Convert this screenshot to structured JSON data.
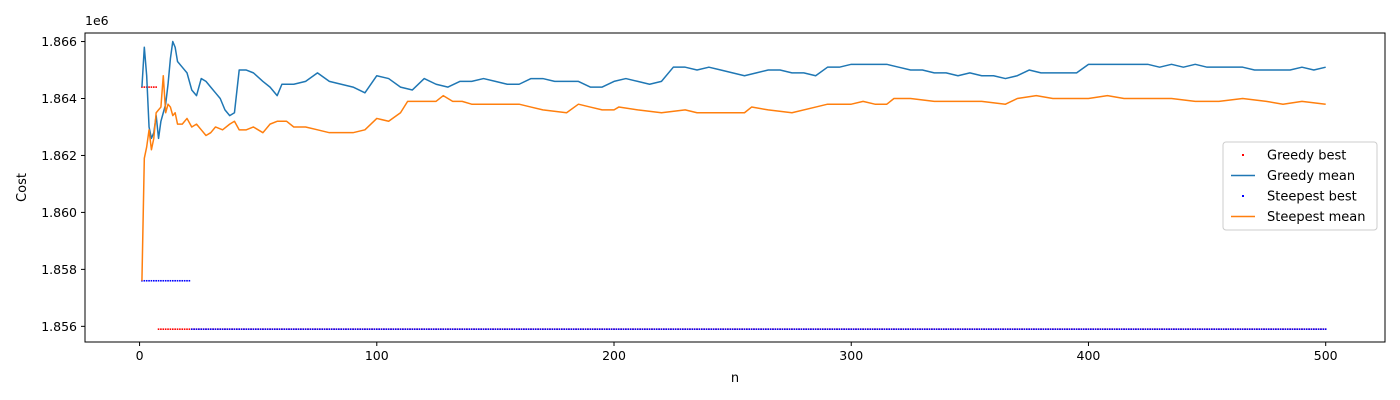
{
  "chart_data": {
    "type": "line",
    "title": "",
    "xlabel": "n",
    "ylabel": "Cost",
    "y_offset_label": "1e6",
    "xlim": [
      -23,
      525
    ],
    "ylim": [
      1855.45,
      1866.3
    ],
    "y_scale": 1000,
    "x_ticks": [
      0,
      100,
      200,
      300,
      400,
      500
    ],
    "x_tick_labels": [
      "0",
      "100",
      "200",
      "300",
      "400",
      "500"
    ],
    "y_ticks": [
      1856,
      1858,
      1860,
      1862,
      1864,
      1866
    ],
    "y_tick_labels": [
      "1.856",
      "1.858",
      "1.860",
      "1.862",
      "1.864",
      "1.866"
    ],
    "grid": false,
    "legend_position": "center-right",
    "series": [
      {
        "name": "Greedy best",
        "style": "points",
        "color": "#ff0000",
        "segments": [
          {
            "x_from": 1,
            "x_to": 7,
            "y": 1864.4
          },
          {
            "x_from": 8,
            "x_to": 500,
            "y": 1855.9
          }
        ]
      },
      {
        "name": "Greedy mean",
        "style": "line",
        "color": "#1f77b4",
        "points": [
          [
            1,
            1864.4
          ],
          [
            2,
            1865.8
          ],
          [
            3,
            1864.8
          ],
          [
            4,
            1863.0
          ],
          [
            5,
            1862.6
          ],
          [
            6,
            1862.8
          ],
          [
            7,
            1863.4
          ],
          [
            8,
            1862.6
          ],
          [
            9,
            1863.2
          ],
          [
            10,
            1863.5
          ],
          [
            11,
            1863.8
          ],
          [
            12,
            1864.5
          ],
          [
            13,
            1865.4
          ],
          [
            14,
            1866.0
          ],
          [
            15,
            1865.8
          ],
          [
            16,
            1865.3
          ],
          [
            18,
            1865.1
          ],
          [
            20,
            1864.9
          ],
          [
            22,
            1864.3
          ],
          [
            24,
            1864.1
          ],
          [
            26,
            1864.7
          ],
          [
            28,
            1864.6
          ],
          [
            30,
            1864.4
          ],
          [
            32,
            1864.2
          ],
          [
            34,
            1864.0
          ],
          [
            36,
            1863.6
          ],
          [
            38,
            1863.4
          ],
          [
            40,
            1863.5
          ],
          [
            42,
            1865.0
          ],
          [
            45,
            1865.0
          ],
          [
            48,
            1864.9
          ],
          [
            52,
            1864.6
          ],
          [
            55,
            1864.4
          ],
          [
            58,
            1864.1
          ],
          [
            60,
            1864.5
          ],
          [
            65,
            1864.5
          ],
          [
            70,
            1864.6
          ],
          [
            75,
            1864.9
          ],
          [
            80,
            1864.6
          ],
          [
            85,
            1864.5
          ],
          [
            90,
            1864.4
          ],
          [
            95,
            1864.2
          ],
          [
            100,
            1864.8
          ],
          [
            105,
            1864.7
          ],
          [
            110,
            1864.4
          ],
          [
            115,
            1864.3
          ],
          [
            120,
            1864.7
          ],
          [
            125,
            1864.5
          ],
          [
            130,
            1864.4
          ],
          [
            135,
            1864.6
          ],
          [
            140,
            1864.6
          ],
          [
            145,
            1864.7
          ],
          [
            150,
            1864.6
          ],
          [
            155,
            1864.5
          ],
          [
            160,
            1864.5
          ],
          [
            165,
            1864.7
          ],
          [
            170,
            1864.7
          ],
          [
            175,
            1864.6
          ],
          [
            180,
            1864.6
          ],
          [
            185,
            1864.6
          ],
          [
            190,
            1864.4
          ],
          [
            195,
            1864.4
          ],
          [
            200,
            1864.6
          ],
          [
            205,
            1864.7
          ],
          [
            210,
            1864.6
          ],
          [
            215,
            1864.5
          ],
          [
            220,
            1864.6
          ],
          [
            225,
            1865.1
          ],
          [
            230,
            1865.1
          ],
          [
            235,
            1865.0
          ],
          [
            240,
            1865.1
          ],
          [
            245,
            1865.0
          ],
          [
            250,
            1864.9
          ],
          [
            255,
            1864.8
          ],
          [
            260,
            1864.9
          ],
          [
            265,
            1865.0
          ],
          [
            270,
            1865.0
          ],
          [
            275,
            1864.9
          ],
          [
            280,
            1864.9
          ],
          [
            285,
            1864.8
          ],
          [
            290,
            1865.1
          ],
          [
            295,
            1865.1
          ],
          [
            300,
            1865.2
          ],
          [
            305,
            1865.2
          ],
          [
            310,
            1865.2
          ],
          [
            315,
            1865.2
          ],
          [
            320,
            1865.1
          ],
          [
            325,
            1865.0
          ],
          [
            330,
            1865.0
          ],
          [
            335,
            1864.9
          ],
          [
            340,
            1864.9
          ],
          [
            345,
            1864.8
          ],
          [
            350,
            1864.9
          ],
          [
            355,
            1864.8
          ],
          [
            360,
            1864.8
          ],
          [
            365,
            1864.7
          ],
          [
            370,
            1864.8
          ],
          [
            375,
            1865.0
          ],
          [
            380,
            1864.9
          ],
          [
            385,
            1864.9
          ],
          [
            390,
            1864.9
          ],
          [
            395,
            1864.9
          ],
          [
            400,
            1865.2
          ],
          [
            405,
            1865.2
          ],
          [
            410,
            1865.2
          ],
          [
            415,
            1865.2
          ],
          [
            420,
            1865.2
          ],
          [
            425,
            1865.2
          ],
          [
            430,
            1865.1
          ],
          [
            435,
            1865.2
          ],
          [
            440,
            1865.1
          ],
          [
            445,
            1865.2
          ],
          [
            450,
            1865.1
          ],
          [
            455,
            1865.1
          ],
          [
            460,
            1865.1
          ],
          [
            465,
            1865.1
          ],
          [
            470,
            1865.0
          ],
          [
            475,
            1865.0
          ],
          [
            480,
            1865.0
          ],
          [
            485,
            1865.0
          ],
          [
            490,
            1865.1
          ],
          [
            495,
            1865.0
          ],
          [
            500,
            1865.1
          ]
        ]
      },
      {
        "name": "Steepest best",
        "style": "points",
        "color": "#0000ff",
        "segments": [
          {
            "x_from": 1,
            "x_to": 21,
            "y": 1857.6
          },
          {
            "x_from": 22,
            "x_to": 500,
            "y": 1855.9
          }
        ]
      },
      {
        "name": "Steepest mean",
        "style": "line",
        "color": "#ff7f0e",
        "points": [
          [
            1,
            1857.6
          ],
          [
            2,
            1861.9
          ],
          [
            3,
            1862.3
          ],
          [
            4,
            1862.9
          ],
          [
            5,
            1862.2
          ],
          [
            6,
            1862.6
          ],
          [
            7,
            1863.5
          ],
          [
            8,
            1863.6
          ],
          [
            9,
            1863.7
          ],
          [
            10,
            1864.8
          ],
          [
            11,
            1863.5
          ],
          [
            12,
            1863.8
          ],
          [
            13,
            1863.7
          ],
          [
            14,
            1863.4
          ],
          [
            15,
            1863.5
          ],
          [
            16,
            1863.1
          ],
          [
            18,
            1863.1
          ],
          [
            20,
            1863.3
          ],
          [
            22,
            1863.0
          ],
          [
            24,
            1863.1
          ],
          [
            26,
            1862.9
          ],
          [
            28,
            1862.7
          ],
          [
            30,
            1862.8
          ],
          [
            32,
            1863.0
          ],
          [
            35,
            1862.9
          ],
          [
            38,
            1863.1
          ],
          [
            40,
            1863.2
          ],
          [
            42,
            1862.9
          ],
          [
            45,
            1862.9
          ],
          [
            48,
            1863.0
          ],
          [
            52,
            1862.8
          ],
          [
            55,
            1863.1
          ],
          [
            58,
            1863.2
          ],
          [
            62,
            1863.2
          ],
          [
            65,
            1863.0
          ],
          [
            70,
            1863.0
          ],
          [
            75,
            1862.9
          ],
          [
            80,
            1862.8
          ],
          [
            85,
            1862.8
          ],
          [
            90,
            1862.8
          ],
          [
            95,
            1862.9
          ],
          [
            100,
            1863.3
          ],
          [
            105,
            1863.2
          ],
          [
            110,
            1863.5
          ],
          [
            113,
            1863.9
          ],
          [
            117,
            1863.9
          ],
          [
            120,
            1863.9
          ],
          [
            125,
            1863.9
          ],
          [
            128,
            1864.1
          ],
          [
            132,
            1863.9
          ],
          [
            136,
            1863.9
          ],
          [
            140,
            1863.8
          ],
          [
            150,
            1863.8
          ],
          [
            160,
            1863.8
          ],
          [
            165,
            1863.7
          ],
          [
            170,
            1863.6
          ],
          [
            180,
            1863.5
          ],
          [
            185,
            1863.8
          ],
          [
            190,
            1863.7
          ],
          [
            195,
            1863.6
          ],
          [
            200,
            1863.6
          ],
          [
            202,
            1863.7
          ],
          [
            210,
            1863.6
          ],
          [
            220,
            1863.5
          ],
          [
            230,
            1863.6
          ],
          [
            235,
            1863.5
          ],
          [
            240,
            1863.5
          ],
          [
            250,
            1863.5
          ],
          [
            255,
            1863.5
          ],
          [
            258,
            1863.7
          ],
          [
            265,
            1863.6
          ],
          [
            275,
            1863.5
          ],
          [
            285,
            1863.7
          ],
          [
            290,
            1863.8
          ],
          [
            295,
            1863.8
          ],
          [
            300,
            1863.8
          ],
          [
            305,
            1863.9
          ],
          [
            310,
            1863.8
          ],
          [
            315,
            1863.8
          ],
          [
            318,
            1864.0
          ],
          [
            325,
            1864.0
          ],
          [
            335,
            1863.9
          ],
          [
            345,
            1863.9
          ],
          [
            355,
            1863.9
          ],
          [
            365,
            1863.8
          ],
          [
            370,
            1864.0
          ],
          [
            378,
            1864.1
          ],
          [
            385,
            1864.0
          ],
          [
            390,
            1864.0
          ],
          [
            395,
            1864.0
          ],
          [
            400,
            1864.0
          ],
          [
            408,
            1864.1
          ],
          [
            415,
            1864.0
          ],
          [
            425,
            1864.0
          ],
          [
            435,
            1864.0
          ],
          [
            445,
            1863.9
          ],
          [
            455,
            1863.9
          ],
          [
            465,
            1864.0
          ],
          [
            475,
            1863.9
          ],
          [
            482,
            1863.8
          ],
          [
            490,
            1863.9
          ],
          [
            500,
            1863.8
          ]
        ]
      }
    ]
  }
}
